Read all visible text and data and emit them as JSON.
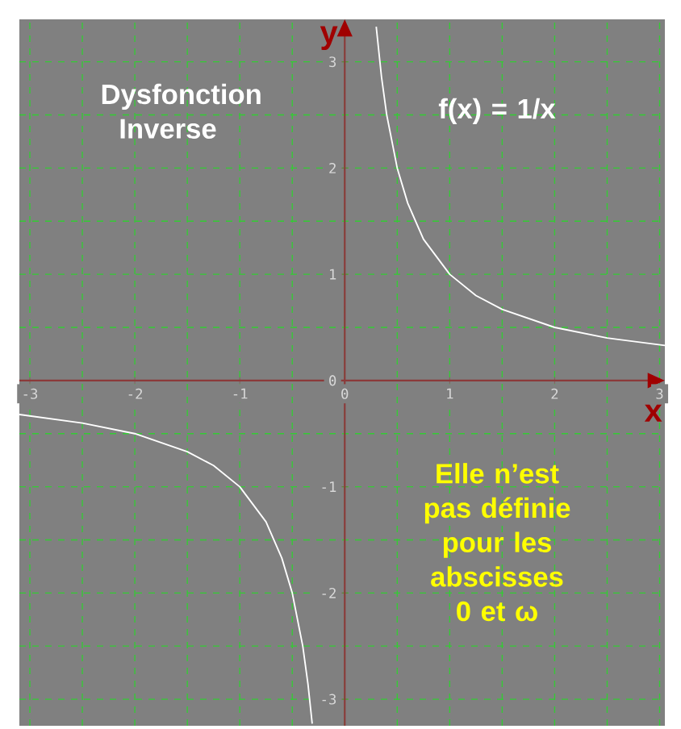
{
  "chart_data": {
    "type": "line",
    "xlabel": "x",
    "ylabel": "y",
    "series": [
      {
        "color": "#ffffff",
        "x": [
          0.3,
          0.35,
          0.4,
          0.5,
          0.6,
          0.75,
          1,
          1.25,
          1.5,
          2,
          2.5,
          3.05
        ],
        "values": [
          3.33,
          2.86,
          2.5,
          2,
          1.67,
          1.33,
          1,
          0.8,
          0.67,
          0.5,
          0.4,
          0.33
        ]
      },
      {
        "color": "#ffffff",
        "x": [
          -3.1,
          -2.5,
          -2,
          -1.5,
          -1.25,
          -1,
          -0.75,
          -0.6,
          -0.5,
          -0.4,
          -0.35,
          -0.31
        ],
        "values": [
          -0.32,
          -0.4,
          -0.5,
          -0.67,
          -0.8,
          -1,
          -1.33,
          -1.67,
          -2,
          -2.5,
          -2.86,
          -3.23
        ]
      }
    ],
    "xlim": [
      -3.1,
      3.05
    ],
    "ylim": [
      -3.25,
      3.4
    ],
    "xticks": [
      -3,
      -2,
      -1,
      0,
      1,
      2,
      3
    ],
    "yticks": [
      -3,
      -2,
      -1,
      0,
      1,
      2,
      3
    ],
    "grid": true,
    "marker": "none",
    "line_style": "solid",
    "annotations": [
      "Dysfonction Inverse",
      "f(x)  =  1/x",
      "Elle n’est pas définie pour les abscisses 0 et ω"
    ]
  }
}
